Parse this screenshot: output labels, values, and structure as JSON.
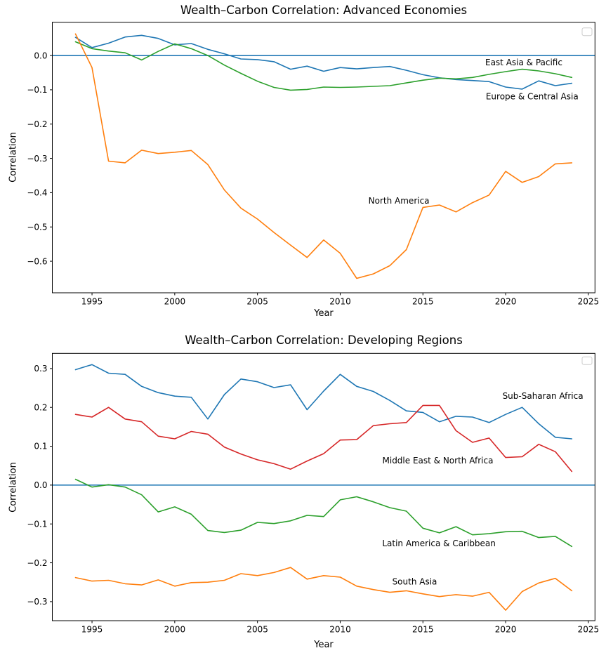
{
  "chart_data": [
    {
      "type": "line",
      "title": "Wealth–Carbon Correlation: Advanced Economies",
      "xlabel": "Year",
      "ylabel": "Correlation",
      "grid": false,
      "legend": {
        "position": "upper right",
        "entries": []
      },
      "xlim": [
        1992.6,
        2025.4
      ],
      "ylim": [
        -0.692,
        0.097
      ],
      "x": [
        1994,
        1995,
        1996,
        1997,
        1998,
        1999,
        2000,
        2001,
        2002,
        2003,
        2004,
        2005,
        2006,
        2007,
        2008,
        2009,
        2010,
        2011,
        2012,
        2013,
        2014,
        2015,
        2016,
        2017,
        2018,
        2019,
        2020,
        2021,
        2022,
        2023,
        2024
      ],
      "xticks": {
        "values": [
          1995,
          2000,
          2005,
          2010,
          2015,
          2020,
          2025
        ],
        "labels": [
          "1995",
          "2000",
          "2005",
          "2010",
          "2015",
          "2020",
          "2025"
        ]
      },
      "yticks": {
        "values": [
          0.0,
          -0.1,
          -0.2,
          -0.3,
          -0.4,
          -0.5,
          -0.6
        ],
        "labels": [
          "0.0",
          "−0.1",
          "−0.2",
          "−0.3",
          "−0.4",
          "−0.5",
          "−0.6"
        ]
      },
      "zero_line": {
        "value": 0,
        "color": "#1f77b4"
      },
      "series": [
        {
          "name": "East Asia & Pacific",
          "color": "#1f77b4",
          "values": [
            0.053,
            0.023,
            0.036,
            0.054,
            0.059,
            0.05,
            0.031,
            0.035,
            0.018,
            0.005,
            -0.01,
            -0.012,
            -0.018,
            -0.04,
            -0.031,
            -0.046,
            -0.035,
            -0.039,
            -0.035,
            -0.032,
            -0.043,
            -0.056,
            -0.065,
            -0.07,
            -0.073,
            -0.076,
            -0.092,
            -0.098,
            -0.074,
            -0.088,
            -0.081
          ]
        },
        {
          "name": "Europe & Central Asia",
          "color": "#2ca02c",
          "values": [
            0.04,
            0.02,
            0.013,
            0.008,
            -0.013,
            0.012,
            0.034,
            0.02,
            0.0,
            -0.028,
            -0.052,
            -0.075,
            -0.093,
            -0.101,
            -0.099,
            -0.092,
            -0.093,
            -0.092,
            -0.09,
            -0.088,
            -0.08,
            -0.072,
            -0.066,
            -0.068,
            -0.064,
            -0.055,
            -0.047,
            -0.04,
            -0.045,
            -0.053,
            -0.064
          ]
        },
        {
          "name": "North America",
          "color": "#ff7f0e",
          "values": [
            0.063,
            -0.035,
            -0.308,
            -0.313,
            -0.276,
            -0.286,
            -0.282,
            -0.277,
            -0.318,
            -0.392,
            -0.445,
            -0.477,
            -0.516,
            -0.553,
            -0.589,
            -0.538,
            -0.577,
            -0.65,
            -0.637,
            -0.613,
            -0.566,
            -0.443,
            -0.436,
            -0.456,
            -0.429,
            -0.407,
            -0.338,
            -0.37,
            -0.353,
            -0.316,
            -0.313
          ]
        }
      ],
      "annotations": [
        {
          "text": "East Asia & Pacific",
          "x": 2021.1,
          "y": -0.0205
        },
        {
          "text": "Europe & Central Asia",
          "x": 2021.6,
          "y": -0.12
        },
        {
          "text": "North America",
          "x": 2013.55,
          "y": -0.424
        }
      ]
    },
    {
      "type": "line",
      "title": "Wealth–Carbon Correlation: Developing Regions",
      "xlabel": "Year",
      "ylabel": "Correlation",
      "grid": false,
      "legend": {
        "position": "upper right",
        "entries": []
      },
      "xlim": [
        1992.6,
        2025.4
      ],
      "ylim": [
        -0.349,
        0.339
      ],
      "x": [
        1994,
        1995,
        1996,
        1997,
        1998,
        1999,
        2000,
        2001,
        2002,
        2003,
        2004,
        2005,
        2006,
        2007,
        2008,
        2009,
        2010,
        2011,
        2012,
        2013,
        2014,
        2015,
        2016,
        2017,
        2018,
        2019,
        2020,
        2021,
        2022,
        2023,
        2024
      ],
      "xticks": {
        "values": [
          1995,
          2000,
          2005,
          2010,
          2015,
          2020,
          2025
        ],
        "labels": [
          "1995",
          "2000",
          "2005",
          "2010",
          "2015",
          "2020",
          "2025"
        ]
      },
      "yticks": {
        "values": [
          0.3,
          0.2,
          0.1,
          0.0,
          -0.1,
          -0.2,
          -0.3
        ],
        "labels": [
          "0.3",
          "0.2",
          "0.1",
          "0.0",
          "−0.1",
          "−0.2",
          "−0.3"
        ]
      },
      "zero_line": {
        "value": 0,
        "color": "#1f77b4"
      },
      "series": [
        {
          "name": "Sub-Saharan Africa",
          "color": "#1f77b4",
          "values": [
            0.297,
            0.31,
            0.288,
            0.285,
            0.254,
            0.238,
            0.229,
            0.226,
            0.17,
            0.233,
            0.273,
            0.266,
            0.251,
            0.258,
            0.194,
            0.242,
            0.285,
            0.254,
            0.241,
            0.218,
            0.191,
            0.187,
            0.163,
            0.177,
            0.175,
            0.161,
            0.182,
            0.2,
            0.158,
            0.123,
            0.119
          ]
        },
        {
          "name": "Middle East & North Africa",
          "color": "#d62728",
          "values": [
            0.182,
            0.175,
            0.2,
            0.17,
            0.163,
            0.126,
            0.119,
            0.138,
            0.131,
            0.098,
            0.08,
            0.065,
            0.055,
            0.041,
            0.062,
            0.081,
            0.116,
            0.117,
            0.153,
            0.158,
            0.161,
            0.205,
            0.205,
            0.14,
            0.11,
            0.121,
            0.071,
            0.073,
            0.105,
            0.086,
            0.035
          ]
        },
        {
          "name": "Latin America & Caribbean",
          "color": "#2ca02c",
          "values": [
            0.015,
            -0.005,
            0.001,
            -0.005,
            -0.025,
            -0.069,
            -0.056,
            -0.075,
            -0.117,
            -0.122,
            -0.116,
            -0.096,
            -0.099,
            -0.092,
            -0.078,
            -0.081,
            -0.038,
            -0.03,
            -0.043,
            -0.058,
            -0.067,
            -0.111,
            -0.123,
            -0.107,
            -0.128,
            -0.125,
            -0.12,
            -0.119,
            -0.135,
            -0.132,
            -0.158
          ]
        },
        {
          "name": "South Asia",
          "color": "#ff7f0e",
          "values": [
            -0.238,
            -0.247,
            -0.245,
            -0.254,
            -0.257,
            -0.244,
            -0.26,
            -0.251,
            -0.25,
            -0.245,
            -0.228,
            -0.233,
            -0.225,
            -0.212,
            -0.242,
            -0.233,
            -0.237,
            -0.26,
            -0.269,
            -0.276,
            -0.272,
            -0.28,
            -0.287,
            -0.282,
            -0.286,
            -0.276,
            -0.322,
            -0.274,
            -0.252,
            -0.24,
            -0.272
          ]
        }
      ],
      "annotations": [
        {
          "text": "Sub-Saharan Africa",
          "x": 2022.25,
          "y": 0.229
        },
        {
          "text": "Middle East & North Africa",
          "x": 2015.9,
          "y": 0.063
        },
        {
          "text": "Latin America & Caribbean",
          "x": 2015.97,
          "y": -0.15
        },
        {
          "text": "South Asia",
          "x": 2014.5,
          "y": -0.249
        }
      ]
    }
  ]
}
